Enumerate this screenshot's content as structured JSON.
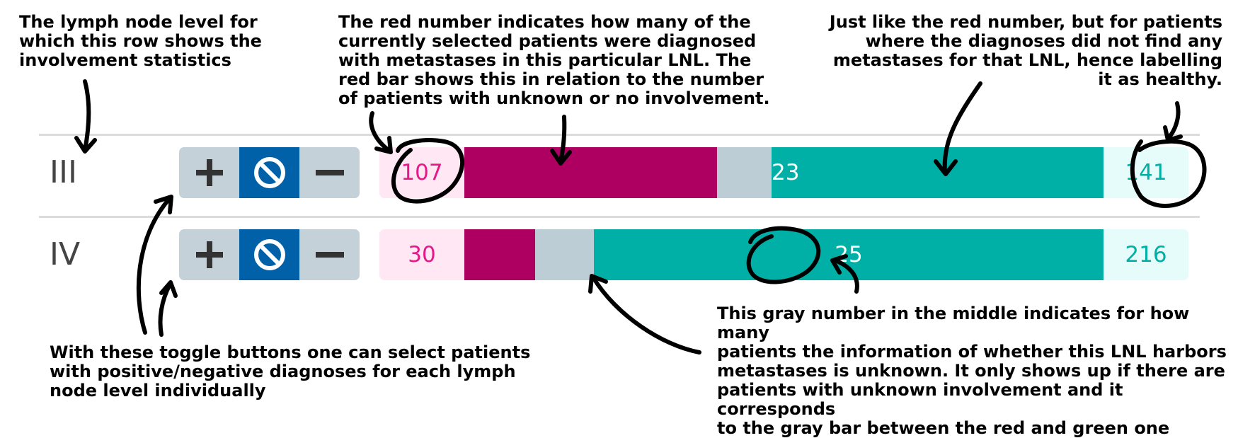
{
  "annotations": {
    "lnl_label": "The lymph node level for\nwhich this row shows the\ninvolvement statistics",
    "red_number": "The red number indicates how many of the\ncurrently selected patients were diagnosed\nwith metastases in this particular LNL. The\nred bar shows this in relation to the number\nof patients with unknown or no involvement.",
    "green_number": "Just like the red number, but for patients\nwhere the diagnoses did not find any\nmetastases for that LNL, hence labelling\nit as healthy.",
    "toggle_buttons": "With these toggle buttons one can select patients\nwith positive/negative diagnoses for each lymph\nnode level individually",
    "gray_number": "This gray number in the middle indicates for how many\npatients the information of whether this LNL harbors\nmetastases is unknown. It only shows up if there are\npatients with unknown involvement and it corresponds\nto the gray bar between the red and green one"
  },
  "rows": [
    {
      "lnl": "III",
      "positive": 107,
      "unknown": 23,
      "negative": 141
    },
    {
      "lnl": "IV",
      "positive": 30,
      "unknown": 25,
      "negative": 216
    }
  ],
  "toggle_icons": [
    "plus-icon",
    "ban-icon",
    "minus-icon"
  ],
  "colors": {
    "positive_bar": "#ad0061",
    "positive_text": "#e6198a",
    "unknown_bar": "#bccdd5",
    "negative_bar": "#00afa5",
    "toggle_active": "#0061a8",
    "toggle_inactive": "#c5d1d8"
  }
}
